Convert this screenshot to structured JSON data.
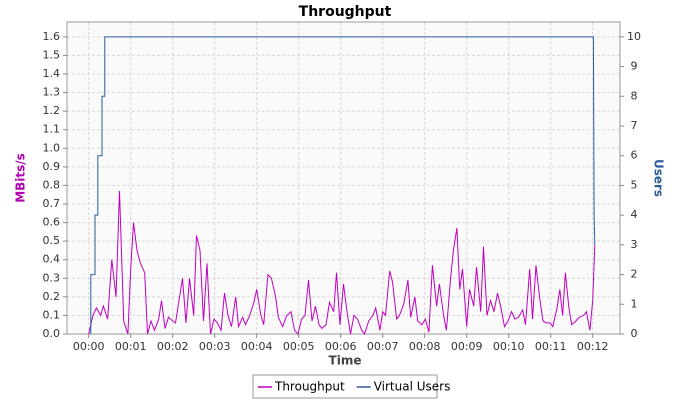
{
  "chart_data": {
    "type": "line",
    "title": "Throughput",
    "xlabel": "Time",
    "ylabel": "MBits/s",
    "y2label": "Users",
    "xlim": [
      -31,
      759
    ],
    "xticks": [
      {
        "value": 0,
        "label": "00:00"
      },
      {
        "value": 60,
        "label": "00:01"
      },
      {
        "value": 120,
        "label": "00:02"
      },
      {
        "value": 180,
        "label": "00:03"
      },
      {
        "value": 240,
        "label": "00:04"
      },
      {
        "value": 300,
        "label": "00:05"
      },
      {
        "value": 360,
        "label": "00:06"
      },
      {
        "value": 420,
        "label": "00:07"
      },
      {
        "value": 480,
        "label": "00:08"
      },
      {
        "value": 540,
        "label": "00:09"
      },
      {
        "value": 600,
        "label": "00:10"
      },
      {
        "value": 660,
        "label": "00:11"
      },
      {
        "value": 720,
        "label": "00:12"
      }
    ],
    "ylim": [
      0,
      1.68
    ],
    "yticks": [
      {
        "value": 0,
        "label": "0.0"
      },
      0.1,
      0.2,
      0.3,
      0.4,
      0.5,
      0.6,
      0.7,
      0.8,
      0.9,
      {
        "value": 1,
        "label": "1.0"
      },
      1.1,
      1.2,
      1.3,
      1.4,
      1.5,
      1.6
    ],
    "y2lim": [
      0,
      10.5
    ],
    "y2ticks": [
      0,
      1,
      2,
      3,
      4,
      5,
      6,
      7,
      8,
      9,
      10
    ],
    "grid": true,
    "legend": "bottom",
    "series": [
      {
        "name": "Throughput",
        "color": "#c000c0",
        "x": [
          0,
          6,
          11,
          17,
          21,
          27,
          33,
          39,
          44,
          50,
          56,
          60,
          64,
          69,
          74,
          80,
          84,
          89,
          94,
          100,
          104,
          109,
          114,
          120,
          124,
          129,
          134,
          139,
          144,
          150,
          154,
          159,
          164,
          169,
          174,
          179,
          184,
          189,
          194,
          199,
          204,
          210,
          214,
          220,
          224,
          230,
          236,
          240,
          246,
          250,
          256,
          261,
          267,
          271,
          277,
          283,
          289,
          294,
          299,
          304,
          309,
          314,
          319,
          324,
          329,
          333,
          339,
          344,
          350,
          354,
          359,
          364,
          369,
          374,
          379,
          384,
          390,
          394,
          400,
          406,
          410,
          416,
          420,
          424,
          430,
          434,
          440,
          444,
          450,
          456,
          460,
          466,
          470,
          476,
          481,
          486,
          491,
          497,
          501,
          507,
          511,
          517,
          521,
          526,
          530,
          534,
          540,
          544,
          550,
          554,
          560,
          564,
          569,
          574,
          579,
          584,
          589,
          594,
          599,
          604,
          609,
          614,
          620,
          624,
          630,
          634,
          639,
          644,
          649,
          654,
          659,
          663,
          669,
          673,
          677,
          681,
          686,
          690,
          696,
          701,
          707,
          711,
          716,
          720,
          723
        ],
        "values": [
          0,
          0.1,
          0.14,
          0.1,
          0.15,
          0.08,
          0.4,
          0.2,
          0.77,
          0.07,
          0,
          0.35,
          0.6,
          0.45,
          0.38,
          0.33,
          0,
          0.07,
          0.02,
          0.08,
          0.18,
          0.03,
          0.09,
          0.07,
          0.06,
          0.18,
          0.3,
          0.06,
          0.3,
          0.1,
          0.53,
          0.45,
          0.07,
          0.38,
          0,
          0.08,
          0.06,
          0.02,
          0.22,
          0.1,
          0.04,
          0.2,
          0.04,
          0.09,
          0.05,
          0.1,
          0.17,
          0.24,
          0.1,
          0.05,
          0.32,
          0.3,
          0.2,
          0.09,
          0.04,
          0.1,
          0.12,
          0.02,
          0,
          0.08,
          0.1,
          0.29,
          0.07,
          0.15,
          0.05,
          0.03,
          0.05,
          0.17,
          0.12,
          0.33,
          0.05,
          0.27,
          0.12,
          0,
          0.1,
          0.08,
          0.02,
          0,
          0.07,
          0.1,
          0.14,
          0.02,
          0.12,
          0.1,
          0.34,
          0.28,
          0.08,
          0.1,
          0.16,
          0.29,
          0.09,
          0.2,
          0.07,
          0.05,
          0.08,
          0.01,
          0.37,
          0.15,
          0.27,
          0.1,
          0.02,
          0.3,
          0.45,
          0.57,
          0.24,
          0.35,
          0.04,
          0.24,
          0.15,
          0.36,
          0.12,
          0.47,
          0.1,
          0.18,
          0.12,
          0.22,
          0.14,
          0.04,
          0.07,
          0.12,
          0.08,
          0.09,
          0.13,
          0.05,
          0.35,
          0.08,
          0.37,
          0.2,
          0.07,
          0.06,
          0.06,
          0.04,
          0.14,
          0.24,
          0.1,
          0.33,
          0.14,
          0.05,
          0.07,
          0.09,
          0.1,
          0.12,
          0.02,
          0.18,
          0.48
        ]
      },
      {
        "name": "Virtual Users",
        "color": "#2a5c9e",
        "axis": "y2",
        "x": [
          3,
          3,
          9,
          9,
          13,
          13,
          19,
          19,
          23,
          23,
          721,
          722,
          723
        ],
        "values": [
          0,
          2,
          2,
          4,
          4,
          6,
          6,
          8,
          8,
          10,
          10,
          4,
          3
        ]
      }
    ]
  }
}
